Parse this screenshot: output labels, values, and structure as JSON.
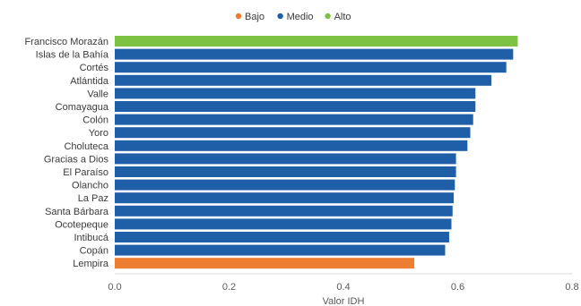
{
  "chart_data": {
    "type": "bar",
    "orientation": "horizontal",
    "xlabel": "Valor IDH",
    "xlim": [
      0,
      0.8
    ],
    "xticks": [
      "0.0",
      "0.2",
      "0.4",
      "0.6",
      "0.8"
    ],
    "grid": false,
    "legend_position": "top-center",
    "legend": [
      {
        "name": "Bajo",
        "color": "#ed7d31"
      },
      {
        "name": "Medio",
        "color": "#1f5fa8"
      },
      {
        "name": "Alto",
        "color": "#7dc242"
      }
    ],
    "categories": [
      "Francisco Morazán",
      "Islas de la Bahía",
      "Cortés",
      "Atlántida",
      "Valle",
      "Comayagua",
      "Colón",
      "Yoro",
      "Choluteca",
      "Gracias a Dios",
      "El Paraíso",
      "Olancho",
      "La Paz",
      "Santa Bárbara",
      "Ocotepeque",
      "Intibucá",
      "Copán",
      "Lempira"
    ],
    "values": [
      0.705,
      0.697,
      0.685,
      0.659,
      0.631,
      0.631,
      0.627,
      0.622,
      0.617,
      0.597,
      0.597,
      0.595,
      0.593,
      0.591,
      0.589,
      0.585,
      0.578,
      0.524
    ],
    "levels": [
      "Alto",
      "Medio",
      "Medio",
      "Medio",
      "Medio",
      "Medio",
      "Medio",
      "Medio",
      "Medio",
      "Medio",
      "Medio",
      "Medio",
      "Medio",
      "Medio",
      "Medio",
      "Medio",
      "Medio",
      "Bajo"
    ]
  }
}
